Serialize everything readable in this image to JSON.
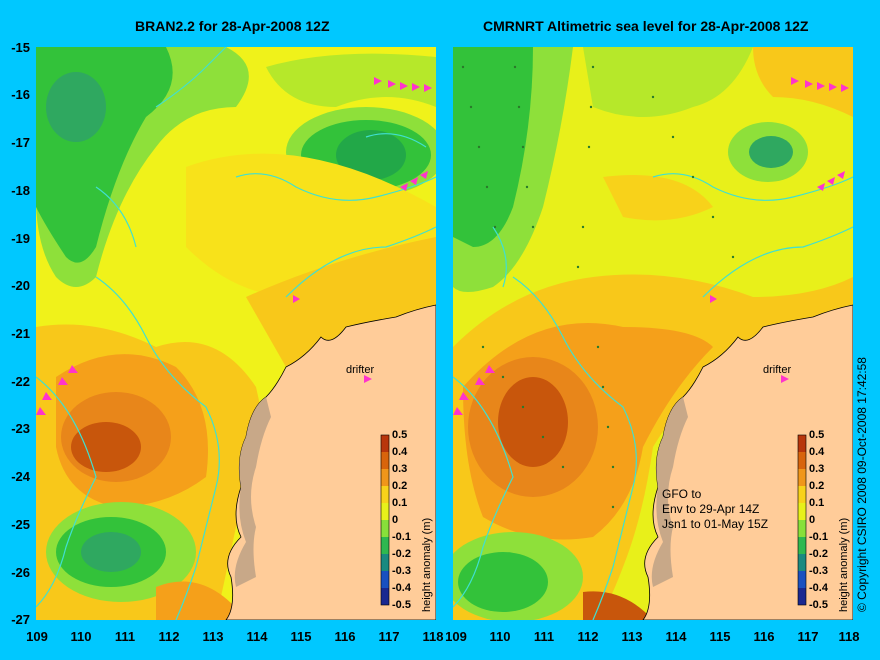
{
  "panels": [
    {
      "title": "BRAN2.2 for 28-Apr-2008 12Z",
      "drifter_label": "drifter"
    },
    {
      "title": "CMRNRT Altimetric sea level  for 28-Apr-2008 12Z",
      "drifter_label": "drifter"
    }
  ],
  "lat_ticks": [
    "-15",
    "-16",
    "-17",
    "-18",
    "-19",
    "-20",
    "-21",
    "-22",
    "-23",
    "-24",
    "-25",
    "-26",
    "-27"
  ],
  "lon_ticks": [
    "109",
    "110",
    "111",
    "112",
    "113",
    "114",
    "115",
    "116",
    "117",
    "118"
  ],
  "colorbar": {
    "ticks": [
      "0.5",
      "0.4",
      "0.3",
      "0.2",
      "0.1",
      "0",
      "-0.1",
      "-0.2",
      "-0.3",
      "-0.4",
      "-0.5"
    ],
    "label": "height anomaly (m)"
  },
  "gfo_note": "GFO to\nEnv to 29-Apr 14Z\nJsn1 to 01-May 15Z",
  "copyright": "© Copyright CSIRO 2008    09-Oct-2008 17:42:58",
  "colors": {
    "background": "#00c8ff",
    "land": "#ffcc99",
    "contour": "#40e0d0",
    "drifter_track": "#ff33cc"
  }
}
